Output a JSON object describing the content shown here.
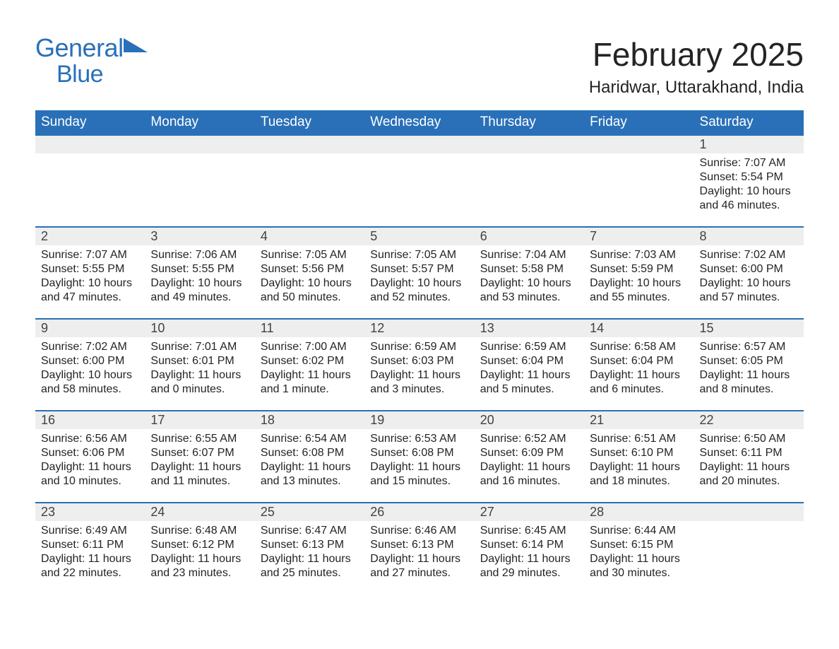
{
  "logo": {
    "line1": "General",
    "line2": "Blue"
  },
  "title": "February 2025",
  "subtitle": "Haridwar, Uttarakhand, India",
  "colors": {
    "header_bg": "#2a70b8",
    "header_text": "#ffffff",
    "daynum_bg": "#eeeeee",
    "daynum_border": "#2a70b8",
    "text": "#242424",
    "logo": "#2a70b8",
    "page_bg": "#ffffff"
  },
  "weekdays": [
    "Sunday",
    "Monday",
    "Tuesday",
    "Wednesday",
    "Thursday",
    "Friday",
    "Saturday"
  ],
  "weeks": [
    [
      null,
      null,
      null,
      null,
      null,
      null,
      {
        "day": "1",
        "sunrise": "Sunrise: 7:07 AM",
        "sunset": "Sunset: 5:54 PM",
        "daylight": "Daylight: 10 hours and 46 minutes."
      }
    ],
    [
      {
        "day": "2",
        "sunrise": "Sunrise: 7:07 AM",
        "sunset": "Sunset: 5:55 PM",
        "daylight": "Daylight: 10 hours and 47 minutes."
      },
      {
        "day": "3",
        "sunrise": "Sunrise: 7:06 AM",
        "sunset": "Sunset: 5:55 PM",
        "daylight": "Daylight: 10 hours and 49 minutes."
      },
      {
        "day": "4",
        "sunrise": "Sunrise: 7:05 AM",
        "sunset": "Sunset: 5:56 PM",
        "daylight": "Daylight: 10 hours and 50 minutes."
      },
      {
        "day": "5",
        "sunrise": "Sunrise: 7:05 AM",
        "sunset": "Sunset: 5:57 PM",
        "daylight": "Daylight: 10 hours and 52 minutes."
      },
      {
        "day": "6",
        "sunrise": "Sunrise: 7:04 AM",
        "sunset": "Sunset: 5:58 PM",
        "daylight": "Daylight: 10 hours and 53 minutes."
      },
      {
        "day": "7",
        "sunrise": "Sunrise: 7:03 AM",
        "sunset": "Sunset: 5:59 PM",
        "daylight": "Daylight: 10 hours and 55 minutes."
      },
      {
        "day": "8",
        "sunrise": "Sunrise: 7:02 AM",
        "sunset": "Sunset: 6:00 PM",
        "daylight": "Daylight: 10 hours and 57 minutes."
      }
    ],
    [
      {
        "day": "9",
        "sunrise": "Sunrise: 7:02 AM",
        "sunset": "Sunset: 6:00 PM",
        "daylight": "Daylight: 10 hours and 58 minutes."
      },
      {
        "day": "10",
        "sunrise": "Sunrise: 7:01 AM",
        "sunset": "Sunset: 6:01 PM",
        "daylight": "Daylight: 11 hours and 0 minutes."
      },
      {
        "day": "11",
        "sunrise": "Sunrise: 7:00 AM",
        "sunset": "Sunset: 6:02 PM",
        "daylight": "Daylight: 11 hours and 1 minute."
      },
      {
        "day": "12",
        "sunrise": "Sunrise: 6:59 AM",
        "sunset": "Sunset: 6:03 PM",
        "daylight": "Daylight: 11 hours and 3 minutes."
      },
      {
        "day": "13",
        "sunrise": "Sunrise: 6:59 AM",
        "sunset": "Sunset: 6:04 PM",
        "daylight": "Daylight: 11 hours and 5 minutes."
      },
      {
        "day": "14",
        "sunrise": "Sunrise: 6:58 AM",
        "sunset": "Sunset: 6:04 PM",
        "daylight": "Daylight: 11 hours and 6 minutes."
      },
      {
        "day": "15",
        "sunrise": "Sunrise: 6:57 AM",
        "sunset": "Sunset: 6:05 PM",
        "daylight": "Daylight: 11 hours and 8 minutes."
      }
    ],
    [
      {
        "day": "16",
        "sunrise": "Sunrise: 6:56 AM",
        "sunset": "Sunset: 6:06 PM",
        "daylight": "Daylight: 11 hours and 10 minutes."
      },
      {
        "day": "17",
        "sunrise": "Sunrise: 6:55 AM",
        "sunset": "Sunset: 6:07 PM",
        "daylight": "Daylight: 11 hours and 11 minutes."
      },
      {
        "day": "18",
        "sunrise": "Sunrise: 6:54 AM",
        "sunset": "Sunset: 6:08 PM",
        "daylight": "Daylight: 11 hours and 13 minutes."
      },
      {
        "day": "19",
        "sunrise": "Sunrise: 6:53 AM",
        "sunset": "Sunset: 6:08 PM",
        "daylight": "Daylight: 11 hours and 15 minutes."
      },
      {
        "day": "20",
        "sunrise": "Sunrise: 6:52 AM",
        "sunset": "Sunset: 6:09 PM",
        "daylight": "Daylight: 11 hours and 16 minutes."
      },
      {
        "day": "21",
        "sunrise": "Sunrise: 6:51 AM",
        "sunset": "Sunset: 6:10 PM",
        "daylight": "Daylight: 11 hours and 18 minutes."
      },
      {
        "day": "22",
        "sunrise": "Sunrise: 6:50 AM",
        "sunset": "Sunset: 6:11 PM",
        "daylight": "Daylight: 11 hours and 20 minutes."
      }
    ],
    [
      {
        "day": "23",
        "sunrise": "Sunrise: 6:49 AM",
        "sunset": "Sunset: 6:11 PM",
        "daylight": "Daylight: 11 hours and 22 minutes."
      },
      {
        "day": "24",
        "sunrise": "Sunrise: 6:48 AM",
        "sunset": "Sunset: 6:12 PM",
        "daylight": "Daylight: 11 hours and 23 minutes."
      },
      {
        "day": "25",
        "sunrise": "Sunrise: 6:47 AM",
        "sunset": "Sunset: 6:13 PM",
        "daylight": "Daylight: 11 hours and 25 minutes."
      },
      {
        "day": "26",
        "sunrise": "Sunrise: 6:46 AM",
        "sunset": "Sunset: 6:13 PM",
        "daylight": "Daylight: 11 hours and 27 minutes."
      },
      {
        "day": "27",
        "sunrise": "Sunrise: 6:45 AM",
        "sunset": "Sunset: 6:14 PM",
        "daylight": "Daylight: 11 hours and 29 minutes."
      },
      {
        "day": "28",
        "sunrise": "Sunrise: 6:44 AM",
        "sunset": "Sunset: 6:15 PM",
        "daylight": "Daylight: 11 hours and 30 minutes."
      },
      null
    ]
  ]
}
